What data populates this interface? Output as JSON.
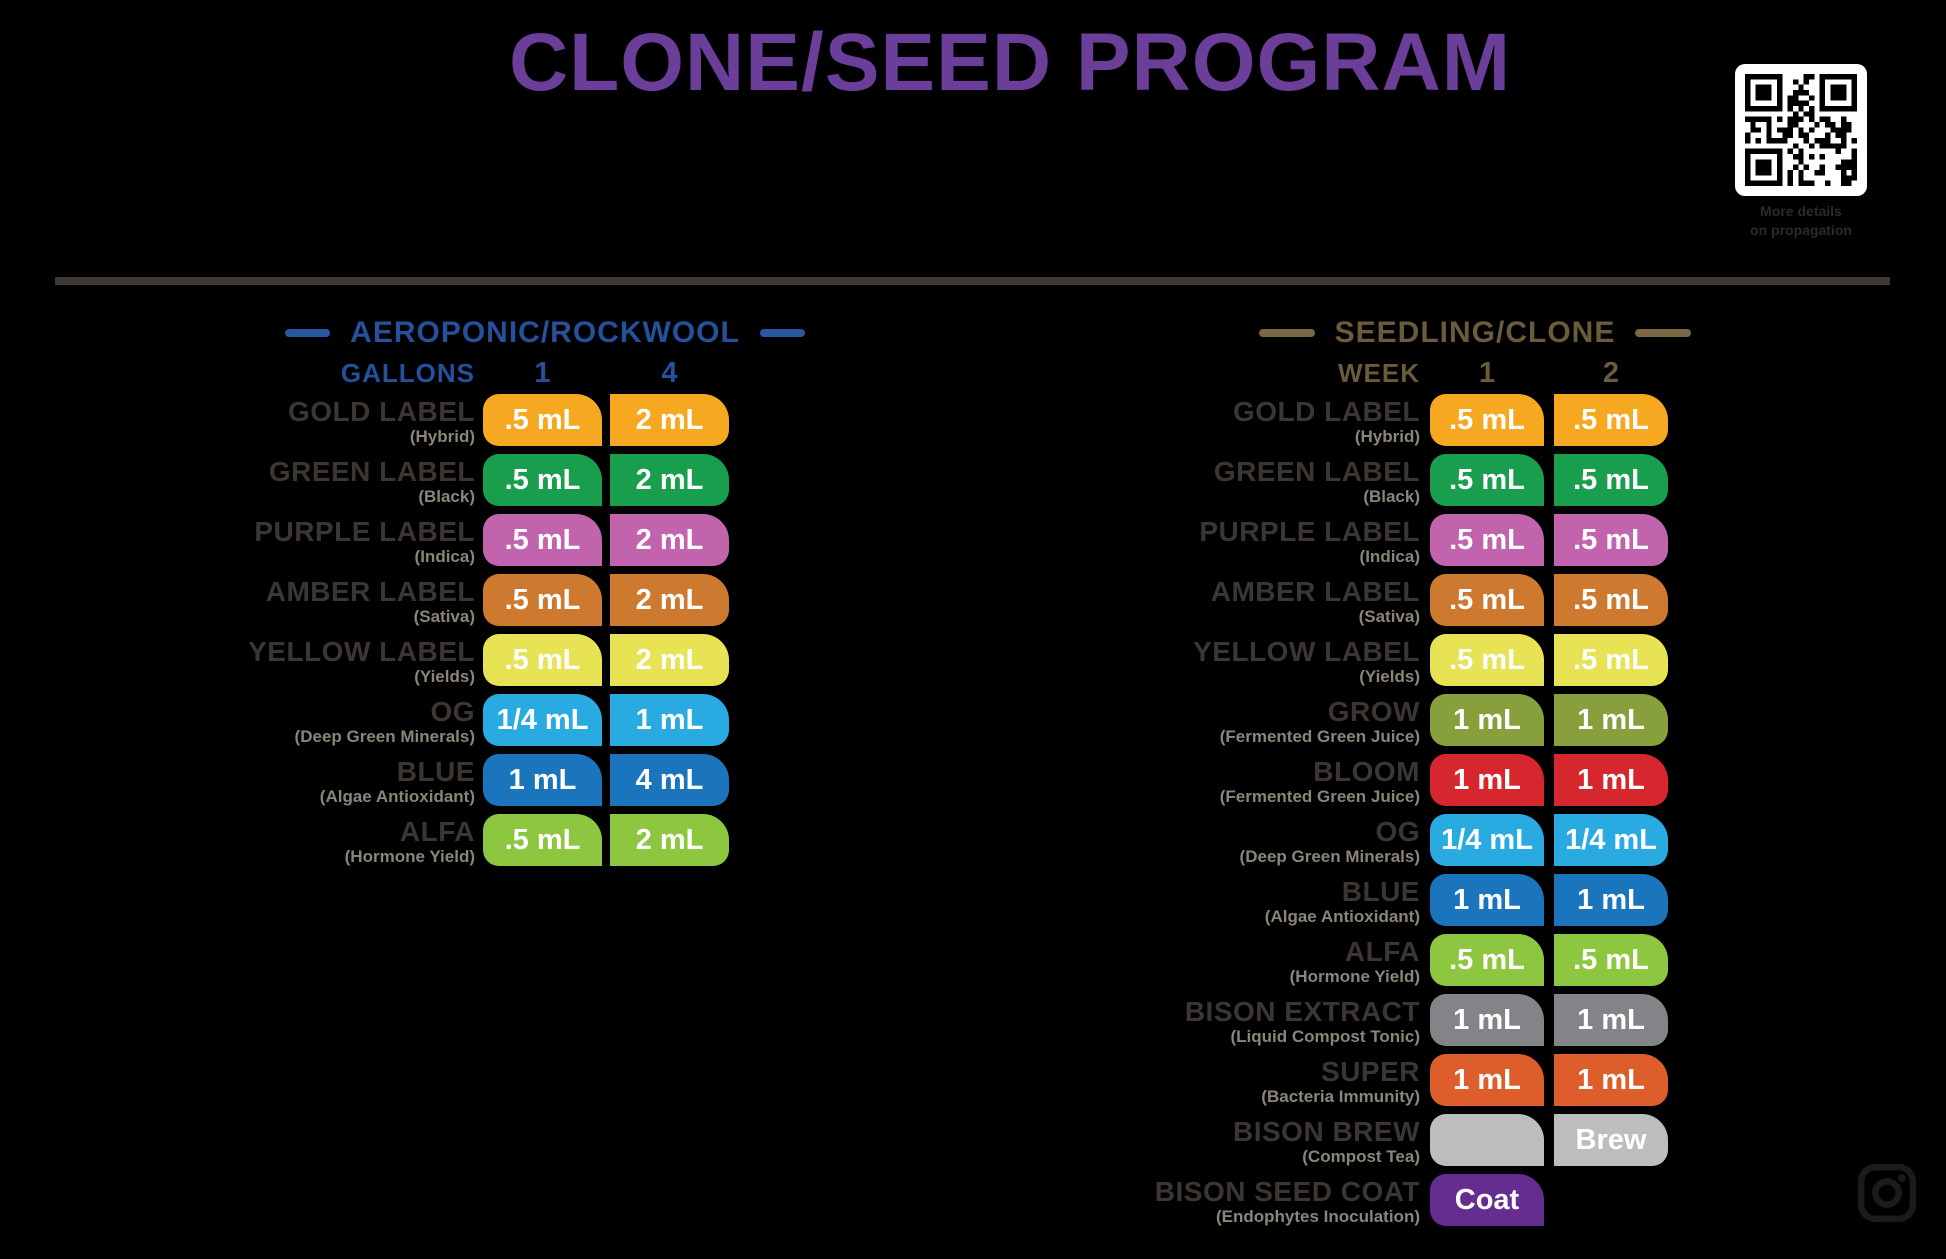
{
  "title": "CLONE/SEED PROGRAM",
  "qr": {
    "caption_line1": "More details",
    "caption_line2": "on propagation"
  },
  "colors": {
    "title_purple": "#6a3e99",
    "divider": "#3d3833",
    "label_text": "#3b3632",
    "sub_label_text": "#8b8478"
  },
  "left_table": {
    "header": "AEROPONIC/ROCKWOOL",
    "unit_label": "GALLONS",
    "columns": [
      "1",
      "4"
    ],
    "dash_color": "#2b55a0",
    "text_color": "#25509c",
    "rows": [
      {
        "name": "GOLD LABEL",
        "sub": "(Hybrid)",
        "color": "#f6a820",
        "values": [
          ".5 mL",
          "2 mL"
        ]
      },
      {
        "name": "GREEN LABEL",
        "sub": "(Black)",
        "color": "#189e4c",
        "values": [
          ".5 mL",
          "2 mL"
        ]
      },
      {
        "name": "PURPLE LABEL",
        "sub": "(Indica)",
        "color": "#c263ae",
        "values": [
          ".5 mL",
          "2 mL"
        ]
      },
      {
        "name": "AMBER LABEL",
        "sub": "(Sativa)",
        "color": "#cd7a30",
        "values": [
          ".5 mL",
          "2 mL"
        ]
      },
      {
        "name": "YELLOW LABEL",
        "sub": "(Yields)",
        "color": "#e7e354",
        "values": [
          ".5 mL",
          "2 mL"
        ]
      },
      {
        "name": "OG",
        "sub": "(Deep Green Minerals)",
        "color": "#29abe2",
        "values": [
          "1/4 mL",
          "1 mL"
        ]
      },
      {
        "name": "BLUE",
        "sub": "(Algae Antioxidant)",
        "color": "#1b75bc",
        "values": [
          "1 mL",
          "4 mL"
        ]
      },
      {
        "name": "ALFA",
        "sub": "(Hormone Yield)",
        "color": "#8dc63f",
        "values": [
          ".5 mL",
          "2 mL"
        ]
      }
    ]
  },
  "right_table": {
    "header": "SEEDLING/CLONE",
    "unit_label": "WEEK",
    "columns": [
      "1",
      "2"
    ],
    "dash_color": "#7a6845",
    "text_color": "#6a5b3a",
    "rows": [
      {
        "name": "GOLD LABEL",
        "sub": "(Hybrid)",
        "color": "#f6a820",
        "values": [
          ".5 mL",
          ".5 mL"
        ]
      },
      {
        "name": "GREEN LABEL",
        "sub": "(Black)",
        "color": "#189e4c",
        "values": [
          ".5 mL",
          ".5 mL"
        ]
      },
      {
        "name": "PURPLE LABEL",
        "sub": "(Indica)",
        "color": "#c263ae",
        "values": [
          ".5 mL",
          ".5 mL"
        ]
      },
      {
        "name": "AMBER LABEL",
        "sub": "(Sativa)",
        "color": "#cd7a30",
        "values": [
          ".5 mL",
          ".5 mL"
        ]
      },
      {
        "name": "YELLOW LABEL",
        "sub": "(Yields)",
        "color": "#e7e354",
        "values": [
          ".5 mL",
          ".5 mL"
        ]
      },
      {
        "name": "GROW",
        "sub": "(Fermented Green Juice)",
        "color": "#88a03c",
        "values": [
          "1 mL",
          "1 mL"
        ]
      },
      {
        "name": "BLOOM",
        "sub": "(Fermented Green Juice)",
        "color": "#d7272e",
        "values": [
          "1 mL",
          "1 mL"
        ]
      },
      {
        "name": "OG",
        "sub": "(Deep Green Minerals)",
        "color": "#29abe2",
        "values": [
          "1/4 mL",
          "1/4 mL"
        ]
      },
      {
        "name": "BLUE",
        "sub": "(Algae Antioxidant)",
        "color": "#1b75bc",
        "values": [
          "1 mL",
          "1 mL"
        ]
      },
      {
        "name": "ALFA",
        "sub": "(Hormone Yield)",
        "color": "#8dc63f",
        "values": [
          ".5 mL",
          ".5 mL"
        ]
      },
      {
        "name": "BISON EXTRACT",
        "sub": "(Liquid Compost Tonic)",
        "color": "#828487",
        "values": [
          "1 mL",
          "1 mL"
        ]
      },
      {
        "name": "SUPER",
        "sub": "(Bacteria Immunity)",
        "color": "#de5e2b",
        "values": [
          "1 mL",
          "1 mL"
        ]
      },
      {
        "name": "BISON BREW",
        "sub": "(Compost Tea)",
        "color": "#bdbdbd",
        "values": [
          "",
          "Brew"
        ]
      },
      {
        "name": "BISON SEED COAT",
        "sub": "(Endophytes Inoculation)",
        "color": "#662d91",
        "values": [
          "Coat",
          null
        ]
      }
    ]
  }
}
